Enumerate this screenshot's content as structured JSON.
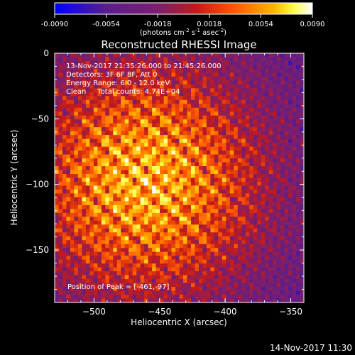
{
  "chart_data": {
    "type": "heatmap",
    "title": "Reconstructed RHESSI Image",
    "xlabel": "Heliocentric X (arcsec)",
    "ylabel": "Heliocentric Y (arcsec)",
    "xlim": [
      -530,
      -340
    ],
    "ylim": [
      -190,
      0
    ],
    "x_ticks": [
      -500,
      -450,
      -400,
      -350
    ],
    "y_ticks": [
      0,
      -50,
      -100,
      -150
    ],
    "colorbar": {
      "range": [
        -0.009,
        0.009
      ],
      "tick_values": [
        -0.009,
        -0.0054,
        -0.0018,
        0.0018,
        0.0054,
        0.009
      ],
      "tick_labels": [
        "-0.0090",
        "-0.0054",
        "-0.0018",
        "0.0018",
        "0.0054",
        "0.0090"
      ],
      "unit_label_parts": [
        "(photons cm",
        "-2",
        " s",
        "-1",
        " asec",
        "-2",
        ")"
      ],
      "colormap": [
        "#0000ff",
        "#5a1d8c",
        "#7a1f6e",
        "#c21a1a",
        "#ff5a00",
        "#ffb400",
        "#ffff50",
        "#ffffff"
      ]
    },
    "annotations": [
      "13-Nov-2017 21:35:26.000 to 21:45:26.000",
      "Detectors: 3F 6F 8F, Att 0",
      "Energy Range: 6.0 - 12.0 keV",
      "Clean     Total counts: 4.74E+04"
    ],
    "peak_label": "Position of Peak = [-461,-97]",
    "peak_position": [
      -461,
      -97
    ]
  },
  "footer": {
    "date": "14-Nov-2017 11:30"
  }
}
